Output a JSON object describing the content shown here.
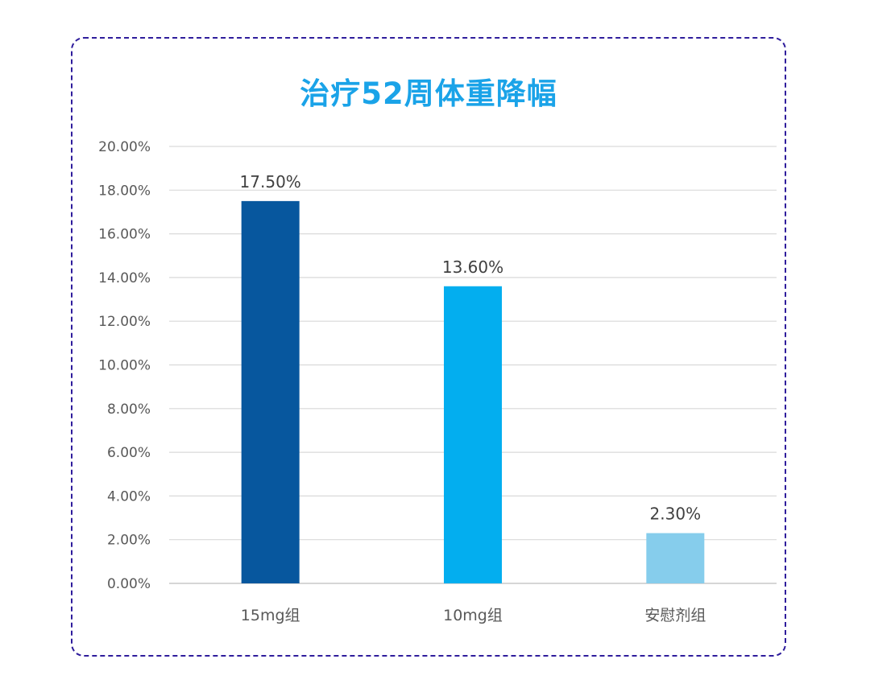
{
  "chart_data": {
    "type": "bar",
    "title": "治疗52周体重降幅",
    "categories": [
      "15mg组",
      "10mg组",
      "安慰剂组"
    ],
    "values": [
      17.5,
      13.6,
      2.3
    ],
    "value_labels": [
      "17.50%",
      "13.60%",
      "2.30%"
    ],
    "bar_colors": [
      "#07579e",
      "#03aeef",
      "#86cdec"
    ],
    "ylim": [
      0,
      20
    ],
    "yticks": [
      0,
      2,
      4,
      6,
      8,
      10,
      12,
      14,
      16,
      18,
      20
    ],
    "ytick_labels": [
      "0.00%",
      "2.00%",
      "4.00%",
      "6.00%",
      "8.00%",
      "10.00%",
      "12.00%",
      "14.00%",
      "16.00%",
      "18.00%",
      "20.00%"
    ],
    "xlabel": "",
    "ylabel": "",
    "grid": true,
    "legend": "none"
  },
  "colors": {
    "title": "#1aa3e8",
    "frame_border": "#2f1d9c",
    "grid": "#d9d9d9",
    "text": "#595959"
  }
}
